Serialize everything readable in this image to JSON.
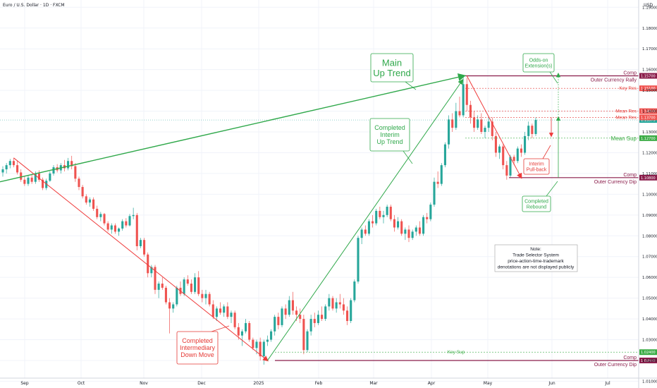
{
  "header": {
    "title": "Euro / U.S. Dollar · 1D · FXCM",
    "currency": "USD"
  },
  "colors": {
    "bull": "#26a69a",
    "bear": "#ef5350",
    "trend_green": "#2fa84a",
    "trend_red": "#ef3a3a",
    "comp": "#8a1c4a",
    "green_text": "#3bac45",
    "red_text": "#e53935"
  },
  "chart_data": {
    "type": "candlestick",
    "x_tick_labels": [
      "Sep",
      "Oct",
      "Nov",
      "Dec",
      "2025",
      "Feb",
      "Mar",
      "Apr",
      "May",
      "Jun",
      "Jul"
    ],
    "y_tick_labels": [
      "1.19000",
      "1.18000",
      "1.17000",
      "1.16000",
      "1.15000",
      "1.14000",
      "1.13000",
      "1.12000",
      "1.11000",
      "1.10000",
      "1.09000",
      "1.08000",
      "1.07000",
      "1.06000",
      "1.05000",
      "1.04000",
      "1.03000",
      "1.02000",
      "1.01000"
    ],
    "ylim": [
      1.0115,
      1.1935
    ],
    "current_price": 1.13575,
    "key_levels": [
      {
        "label": "Comp",
        "label2": "Outer Currency Rally",
        "value": 1.157,
        "tag": "1.15700",
        "kind": "comp"
      },
      {
        "label": "Key Res",
        "value": 1.151,
        "tag": "1.15100",
        "kind": "res"
      },
      {
        "label": "Mean Res",
        "value": 1.14,
        "tag": "1.14000",
        "kind": "res"
      },
      {
        "label": "Mean Res",
        "value": 1.137,
        "tag": "1.13700",
        "kind": "res"
      },
      {
        "label": "Mean Sup",
        "value": 1.127,
        "tag": "1.12700",
        "kind": "sup"
      },
      {
        "label": "Comp",
        "label2": "Outer Currency Dip",
        "value": 1.108,
        "tag": "1.10800",
        "kind": "comp"
      },
      {
        "label": "Key Sup",
        "value": 1.024,
        "tag": "1.02400",
        "kind": "sup"
      },
      {
        "label": "Comp",
        "label2": "Outer Currency Dip",
        "value": 1.02,
        "tag": "1.02000",
        "kind": "comp"
      }
    ],
    "annotations": {
      "main_up_trend": "Main Up Trend",
      "completed_interim_up_trend": "Completed Interim Up Trend",
      "completed_intermediary_down_move": "Completed Intermediary Down Move",
      "odds_on_extension": "Odds-on Extension(s)",
      "interim_pull_back": "Interim Pull-back",
      "completed_rebound": "Completed Rebound",
      "note_title": "Note:",
      "note_lines": [
        "Trade Selector System",
        "price-action-time-trademark",
        "denotations are not displayed publicly"
      ]
    },
    "candles": [
      {
        "o": 1.1105,
        "h": 1.1135,
        "l": 1.1085,
        "c": 1.112
      },
      {
        "o": 1.112,
        "h": 1.115,
        "l": 1.11,
        "c": 1.114
      },
      {
        "o": 1.114,
        "h": 1.117,
        "l": 1.1125,
        "c": 1.116
      },
      {
        "o": 1.116,
        "h": 1.1175,
        "l": 1.113,
        "c": 1.114
      },
      {
        "o": 1.114,
        "h": 1.116,
        "l": 1.1095,
        "c": 1.1105
      },
      {
        "o": 1.1105,
        "h": 1.112,
        "l": 1.106,
        "c": 1.107
      },
      {
        "o": 1.107,
        "h": 1.1085,
        "l": 1.104,
        "c": 1.105
      },
      {
        "o": 1.105,
        "h": 1.109,
        "l": 1.104,
        "c": 1.108
      },
      {
        "o": 1.108,
        "h": 1.1095,
        "l": 1.105,
        "c": 1.106
      },
      {
        "o": 1.106,
        "h": 1.111,
        "l": 1.105,
        "c": 1.11
      },
      {
        "o": 1.11,
        "h": 1.1115,
        "l": 1.106,
        "c": 1.107
      },
      {
        "o": 1.107,
        "h": 1.108,
        "l": 1.102,
        "c": 1.103
      },
      {
        "o": 1.103,
        "h": 1.1075,
        "l": 1.102,
        "c": 1.1065
      },
      {
        "o": 1.1065,
        "h": 1.111,
        "l": 1.106,
        "c": 1.11
      },
      {
        "o": 1.11,
        "h": 1.114,
        "l": 1.109,
        "c": 1.113
      },
      {
        "o": 1.113,
        "h": 1.1145,
        "l": 1.1105,
        "c": 1.1115
      },
      {
        "o": 1.1115,
        "h": 1.115,
        "l": 1.11,
        "c": 1.114
      },
      {
        "o": 1.114,
        "h": 1.1165,
        "l": 1.111,
        "c": 1.1125
      },
      {
        "o": 1.1125,
        "h": 1.1175,
        "l": 1.1115,
        "c": 1.116
      },
      {
        "o": 1.116,
        "h": 1.1185,
        "l": 1.112,
        "c": 1.1135
      },
      {
        "o": 1.1135,
        "h": 1.115,
        "l": 1.106,
        "c": 1.1075
      },
      {
        "o": 1.1075,
        "h": 1.1085,
        "l": 1.102,
        "c": 1.1035
      },
      {
        "o": 1.1035,
        "h": 1.1045,
        "l": 1.098,
        "c": 1.099
      },
      {
        "o": 1.099,
        "h": 1.1,
        "l": 1.095,
        "c": 1.096
      },
      {
        "o": 1.096,
        "h": 1.0985,
        "l": 1.094,
        "c": 1.0975
      },
      {
        "o": 1.0975,
        "h": 1.0985,
        "l": 1.092,
        "c": 1.093
      },
      {
        "o": 1.093,
        "h": 1.0945,
        "l": 1.088,
        "c": 1.089
      },
      {
        "o": 1.089,
        "h": 1.0915,
        "l": 1.087,
        "c": 1.0905
      },
      {
        "o": 1.0905,
        "h": 1.091,
        "l": 1.085,
        "c": 1.086
      },
      {
        "o": 1.086,
        "h": 1.087,
        "l": 1.082,
        "c": 1.083
      },
      {
        "o": 1.083,
        "h": 1.086,
        "l": 1.081,
        "c": 1.085
      },
      {
        "o": 1.085,
        "h": 1.086,
        "l": 1.081,
        "c": 1.082
      },
      {
        "o": 1.082,
        "h": 1.084,
        "l": 1.08,
        "c": 1.0835
      },
      {
        "o": 1.0835,
        "h": 1.088,
        "l": 1.0825,
        "c": 1.087
      },
      {
        "o": 1.087,
        "h": 1.0885,
        "l": 1.084,
        "c": 1.085
      },
      {
        "o": 1.085,
        "h": 1.0905,
        "l": 1.0845,
        "c": 1.0895
      },
      {
        "o": 1.0895,
        "h": 1.0935,
        "l": 1.088,
        "c": 1.09
      },
      {
        "o": 1.09,
        "h": 1.091,
        "l": 1.073,
        "c": 1.075
      },
      {
        "o": 1.075,
        "h": 1.079,
        "l": 1.074,
        "c": 1.078
      },
      {
        "o": 1.078,
        "h": 1.079,
        "l": 1.07,
        "c": 1.071
      },
      {
        "o": 1.071,
        "h": 1.072,
        "l": 1.06,
        "c": 1.062
      },
      {
        "o": 1.062,
        "h": 1.066,
        "l": 1.06,
        "c": 1.065
      },
      {
        "o": 1.065,
        "h": 1.066,
        "l": 1.052,
        "c": 1.054
      },
      {
        "o": 1.054,
        "h": 1.058,
        "l": 1.05,
        "c": 1.057
      },
      {
        "o": 1.057,
        "h": 1.06,
        "l": 1.054,
        "c": 1.055
      },
      {
        "o": 1.055,
        "h": 1.056,
        "l": 1.047,
        "c": 1.048
      },
      {
        "o": 1.048,
        "h": 1.05,
        "l": 1.033,
        "c": 1.045
      },
      {
        "o": 1.045,
        "h": 1.048,
        "l": 1.043,
        "c": 1.047
      },
      {
        "o": 1.047,
        "h": 1.056,
        "l": 1.046,
        "c": 1.055
      },
      {
        "o": 1.055,
        "h": 1.058,
        "l": 1.051,
        "c": 1.052
      },
      {
        "o": 1.052,
        "h": 1.06,
        "l": 1.051,
        "c": 1.059
      },
      {
        "o": 1.059,
        "h": 1.061,
        "l": 1.056,
        "c": 1.057
      },
      {
        "o": 1.057,
        "h": 1.059,
        "l": 1.052,
        "c": 1.053
      },
      {
        "o": 1.053,
        "h": 1.062,
        "l": 1.052,
        "c": 1.06
      },
      {
        "o": 1.06,
        "h": 1.063,
        "l": 1.051,
        "c": 1.052
      },
      {
        "o": 1.052,
        "h": 1.054,
        "l": 1.048,
        "c": 1.05
      },
      {
        "o": 1.05,
        "h": 1.054,
        "l": 1.047,
        "c": 1.052
      },
      {
        "o": 1.052,
        "h": 1.053,
        "l": 1.046,
        "c": 1.047
      },
      {
        "o": 1.047,
        "h": 1.049,
        "l": 1.04,
        "c": 1.041
      },
      {
        "o": 1.041,
        "h": 1.046,
        "l": 1.039,
        "c": 1.045
      },
      {
        "o": 1.045,
        "h": 1.048,
        "l": 1.042,
        "c": 1.043
      },
      {
        "o": 1.043,
        "h": 1.047,
        "l": 1.041,
        "c": 1.046
      },
      {
        "o": 1.046,
        "h": 1.048,
        "l": 1.04,
        "c": 1.041
      },
      {
        "o": 1.041,
        "h": 1.044,
        "l": 1.038,
        "c": 1.043
      },
      {
        "o": 1.043,
        "h": 1.044,
        "l": 1.035,
        "c": 1.036
      },
      {
        "o": 1.036,
        "h": 1.038,
        "l": 1.03,
        "c": 1.032
      },
      {
        "o": 1.032,
        "h": 1.035,
        "l": 1.027,
        "c": 1.034
      },
      {
        "o": 1.034,
        "h": 1.04,
        "l": 1.033,
        "c": 1.038
      },
      {
        "o": 1.038,
        "h": 1.039,
        "l": 1.029,
        "c": 1.03
      },
      {
        "o": 1.03,
        "h": 1.031,
        "l": 1.025,
        "c": 1.026
      },
      {
        "o": 1.026,
        "h": 1.03,
        "l": 1.023,
        "c": 1.029
      },
      {
        "o": 1.029,
        "h": 1.031,
        "l": 1.02,
        "c": 1.022
      },
      {
        "o": 1.022,
        "h": 1.03,
        "l": 1.018,
        "c": 1.029
      },
      {
        "o": 1.029,
        "h": 1.032,
        "l": 1.027,
        "c": 1.03
      },
      {
        "o": 1.03,
        "h": 1.035,
        "l": 1.029,
        "c": 1.034
      },
      {
        "o": 1.034,
        "h": 1.042,
        "l": 1.032,
        "c": 1.041
      },
      {
        "o": 1.041,
        "h": 1.043,
        "l": 1.035,
        "c": 1.037
      },
      {
        "o": 1.037,
        "h": 1.046,
        "l": 1.036,
        "c": 1.045
      },
      {
        "o": 1.045,
        "h": 1.047,
        "l": 1.04,
        "c": 1.042
      },
      {
        "o": 1.042,
        "h": 1.051,
        "l": 1.041,
        "c": 1.049
      },
      {
        "o": 1.049,
        "h": 1.053,
        "l": 1.042,
        "c": 1.044
      },
      {
        "o": 1.044,
        "h": 1.046,
        "l": 1.039,
        "c": 1.042
      },
      {
        "o": 1.042,
        "h": 1.045,
        "l": 1.038,
        "c": 1.04
      },
      {
        "o": 1.04,
        "h": 1.042,
        "l": 1.023,
        "c": 1.025
      },
      {
        "o": 1.025,
        "h": 1.035,
        "l": 1.024,
        "c": 1.034
      },
      {
        "o": 1.034,
        "h": 1.042,
        "l": 1.032,
        "c": 1.04
      },
      {
        "o": 1.04,
        "h": 1.043,
        "l": 1.036,
        "c": 1.038
      },
      {
        "o": 1.038,
        "h": 1.044,
        "l": 1.037,
        "c": 1.042
      },
      {
        "o": 1.042,
        "h": 1.046,
        "l": 1.039,
        "c": 1.04
      },
      {
        "o": 1.04,
        "h": 1.047,
        "l": 1.039,
        "c": 1.046
      },
      {
        "o": 1.046,
        "h": 1.052,
        "l": 1.044,
        "c": 1.05
      },
      {
        "o": 1.05,
        "h": 1.051,
        "l": 1.044,
        "c": 1.045
      },
      {
        "o": 1.045,
        "h": 1.05,
        "l": 1.043,
        "c": 1.048
      },
      {
        "o": 1.048,
        "h": 1.052,
        "l": 1.045,
        "c": 1.047
      },
      {
        "o": 1.047,
        "h": 1.05,
        "l": 1.042,
        "c": 1.044
      },
      {
        "o": 1.044,
        "h": 1.046,
        "l": 1.037,
        "c": 1.039
      },
      {
        "o": 1.039,
        "h": 1.05,
        "l": 1.038,
        "c": 1.049
      },
      {
        "o": 1.049,
        "h": 1.059,
        "l": 1.048,
        "c": 1.058
      },
      {
        "o": 1.058,
        "h": 1.08,
        "l": 1.057,
        "c": 1.079
      },
      {
        "o": 1.079,
        "h": 1.084,
        "l": 1.076,
        "c": 1.083
      },
      {
        "o": 1.083,
        "h": 1.085,
        "l": 1.08,
        "c": 1.081
      },
      {
        "o": 1.081,
        "h": 1.088,
        "l": 1.08,
        "c": 1.087
      },
      {
        "o": 1.087,
        "h": 1.09,
        "l": 1.084,
        "c": 1.086
      },
      {
        "o": 1.086,
        "h": 1.093,
        "l": 1.085,
        "c": 1.092
      },
      {
        "o": 1.092,
        "h": 1.094,
        "l": 1.088,
        "c": 1.089
      },
      {
        "o": 1.089,
        "h": 1.092,
        "l": 1.086,
        "c": 1.09
      },
      {
        "o": 1.09,
        "h": 1.095,
        "l": 1.089,
        "c": 1.094
      },
      {
        "o": 1.094,
        "h": 1.095,
        "l": 1.087,
        "c": 1.088
      },
      {
        "o": 1.088,
        "h": 1.09,
        "l": 1.082,
        "c": 1.084
      },
      {
        "o": 1.084,
        "h": 1.089,
        "l": 1.083,
        "c": 1.087
      },
      {
        "o": 1.087,
        "h": 1.088,
        "l": 1.08,
        "c": 1.081
      },
      {
        "o": 1.081,
        "h": 1.084,
        "l": 1.078,
        "c": 1.083
      },
      {
        "o": 1.083,
        "h": 1.085,
        "l": 1.077,
        "c": 1.079
      },
      {
        "o": 1.079,
        "h": 1.083,
        "l": 1.078,
        "c": 1.082
      },
      {
        "o": 1.082,
        "h": 1.085,
        "l": 1.08,
        "c": 1.084
      },
      {
        "o": 1.084,
        "h": 1.087,
        "l": 1.08,
        "c": 1.081
      },
      {
        "o": 1.081,
        "h": 1.09,
        "l": 1.08,
        "c": 1.089
      },
      {
        "o": 1.089,
        "h": 1.091,
        "l": 1.086,
        "c": 1.088
      },
      {
        "o": 1.088,
        "h": 1.096,
        "l": 1.087,
        "c": 1.095
      },
      {
        "o": 1.095,
        "h": 1.108,
        "l": 1.094,
        "c": 1.106
      },
      {
        "o": 1.106,
        "h": 1.111,
        "l": 1.103,
        "c": 1.105
      },
      {
        "o": 1.105,
        "h": 1.115,
        "l": 1.104,
        "c": 1.114
      },
      {
        "o": 1.114,
        "h": 1.125,
        "l": 1.113,
        "c": 1.124
      },
      {
        "o": 1.124,
        "h": 1.138,
        "l": 1.122,
        "c": 1.136
      },
      {
        "o": 1.136,
        "h": 1.139,
        "l": 1.13,
        "c": 1.132
      },
      {
        "o": 1.132,
        "h": 1.144,
        "l": 1.131,
        "c": 1.14
      },
      {
        "o": 1.14,
        "h": 1.147,
        "l": 1.137,
        "c": 1.138
      },
      {
        "o": 1.138,
        "h": 1.157,
        "l": 1.137,
        "c": 1.153
      },
      {
        "o": 1.153,
        "h": 1.156,
        "l": 1.14,
        "c": 1.143
      },
      {
        "o": 1.143,
        "h": 1.145,
        "l": 1.134,
        "c": 1.137
      },
      {
        "o": 1.137,
        "h": 1.14,
        "l": 1.13,
        "c": 1.132
      },
      {
        "o": 1.132,
        "h": 1.138,
        "l": 1.131,
        "c": 1.136
      },
      {
        "o": 1.136,
        "h": 1.139,
        "l": 1.129,
        "c": 1.13
      },
      {
        "o": 1.13,
        "h": 1.133,
        "l": 1.127,
        "c": 1.132
      },
      {
        "o": 1.132,
        "h": 1.137,
        "l": 1.13,
        "c": 1.135
      },
      {
        "o": 1.135,
        "h": 1.137,
        "l": 1.126,
        "c": 1.128
      },
      {
        "o": 1.128,
        "h": 1.13,
        "l": 1.118,
        "c": 1.12
      },
      {
        "o": 1.12,
        "h": 1.124,
        "l": 1.117,
        "c": 1.123
      },
      {
        "o": 1.123,
        "h": 1.124,
        "l": 1.112,
        "c": 1.114
      },
      {
        "o": 1.114,
        "h": 1.116,
        "l": 1.107,
        "c": 1.109
      },
      {
        "o": 1.109,
        "h": 1.119,
        "l": 1.108,
        "c": 1.118
      },
      {
        "o": 1.118,
        "h": 1.119,
        "l": 1.114,
        "c": 1.116
      },
      {
        "o": 1.116,
        "h": 1.123,
        "l": 1.115,
        "c": 1.122
      },
      {
        "o": 1.122,
        "h": 1.124,
        "l": 1.118,
        "c": 1.12
      },
      {
        "o": 1.12,
        "h": 1.13,
        "l": 1.119,
        "c": 1.128
      },
      {
        "o": 1.128,
        "h": 1.135,
        "l": 1.126,
        "c": 1.133
      },
      {
        "o": 1.133,
        "h": 1.134,
        "l": 1.127,
        "c": 1.129
      },
      {
        "o": 1.129,
        "h": 1.137,
        "l": 1.128,
        "c": 1.1358
      }
    ]
  }
}
